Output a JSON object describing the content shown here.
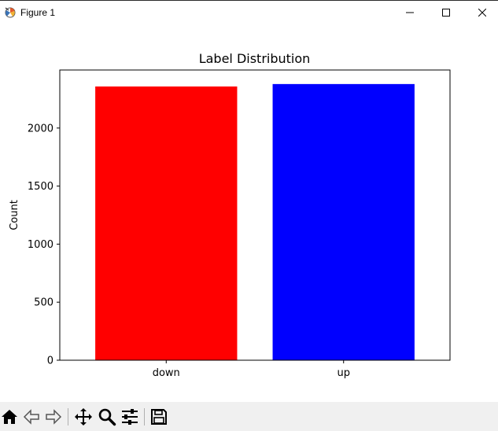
{
  "window": {
    "title": "Figure 1",
    "icons": [
      "matplotlib-app-icon",
      "minimize-icon",
      "maximize-icon",
      "close-icon"
    ]
  },
  "toolbar": {
    "buttons": [
      "home-icon",
      "back-icon",
      "forward-icon",
      "pan-icon",
      "zoom-icon",
      "configure-subplots-icon",
      "save-icon"
    ]
  },
  "chart_data": {
    "type": "bar",
    "title": "Label Distribution",
    "xlabel": "",
    "ylabel": "Count",
    "categories": [
      "down",
      "up"
    ],
    "values": [
      2358,
      2379
    ],
    "colors": [
      "#ff0000",
      "#0000ff"
    ],
    "ylim": [
      0,
      2500
    ],
    "yticks": [
      0,
      500,
      1000,
      1500,
      2000
    ],
    "ytick_labels": [
      "0",
      "500",
      "1000",
      "1500",
      "2000"
    ],
    "grid": false
  }
}
